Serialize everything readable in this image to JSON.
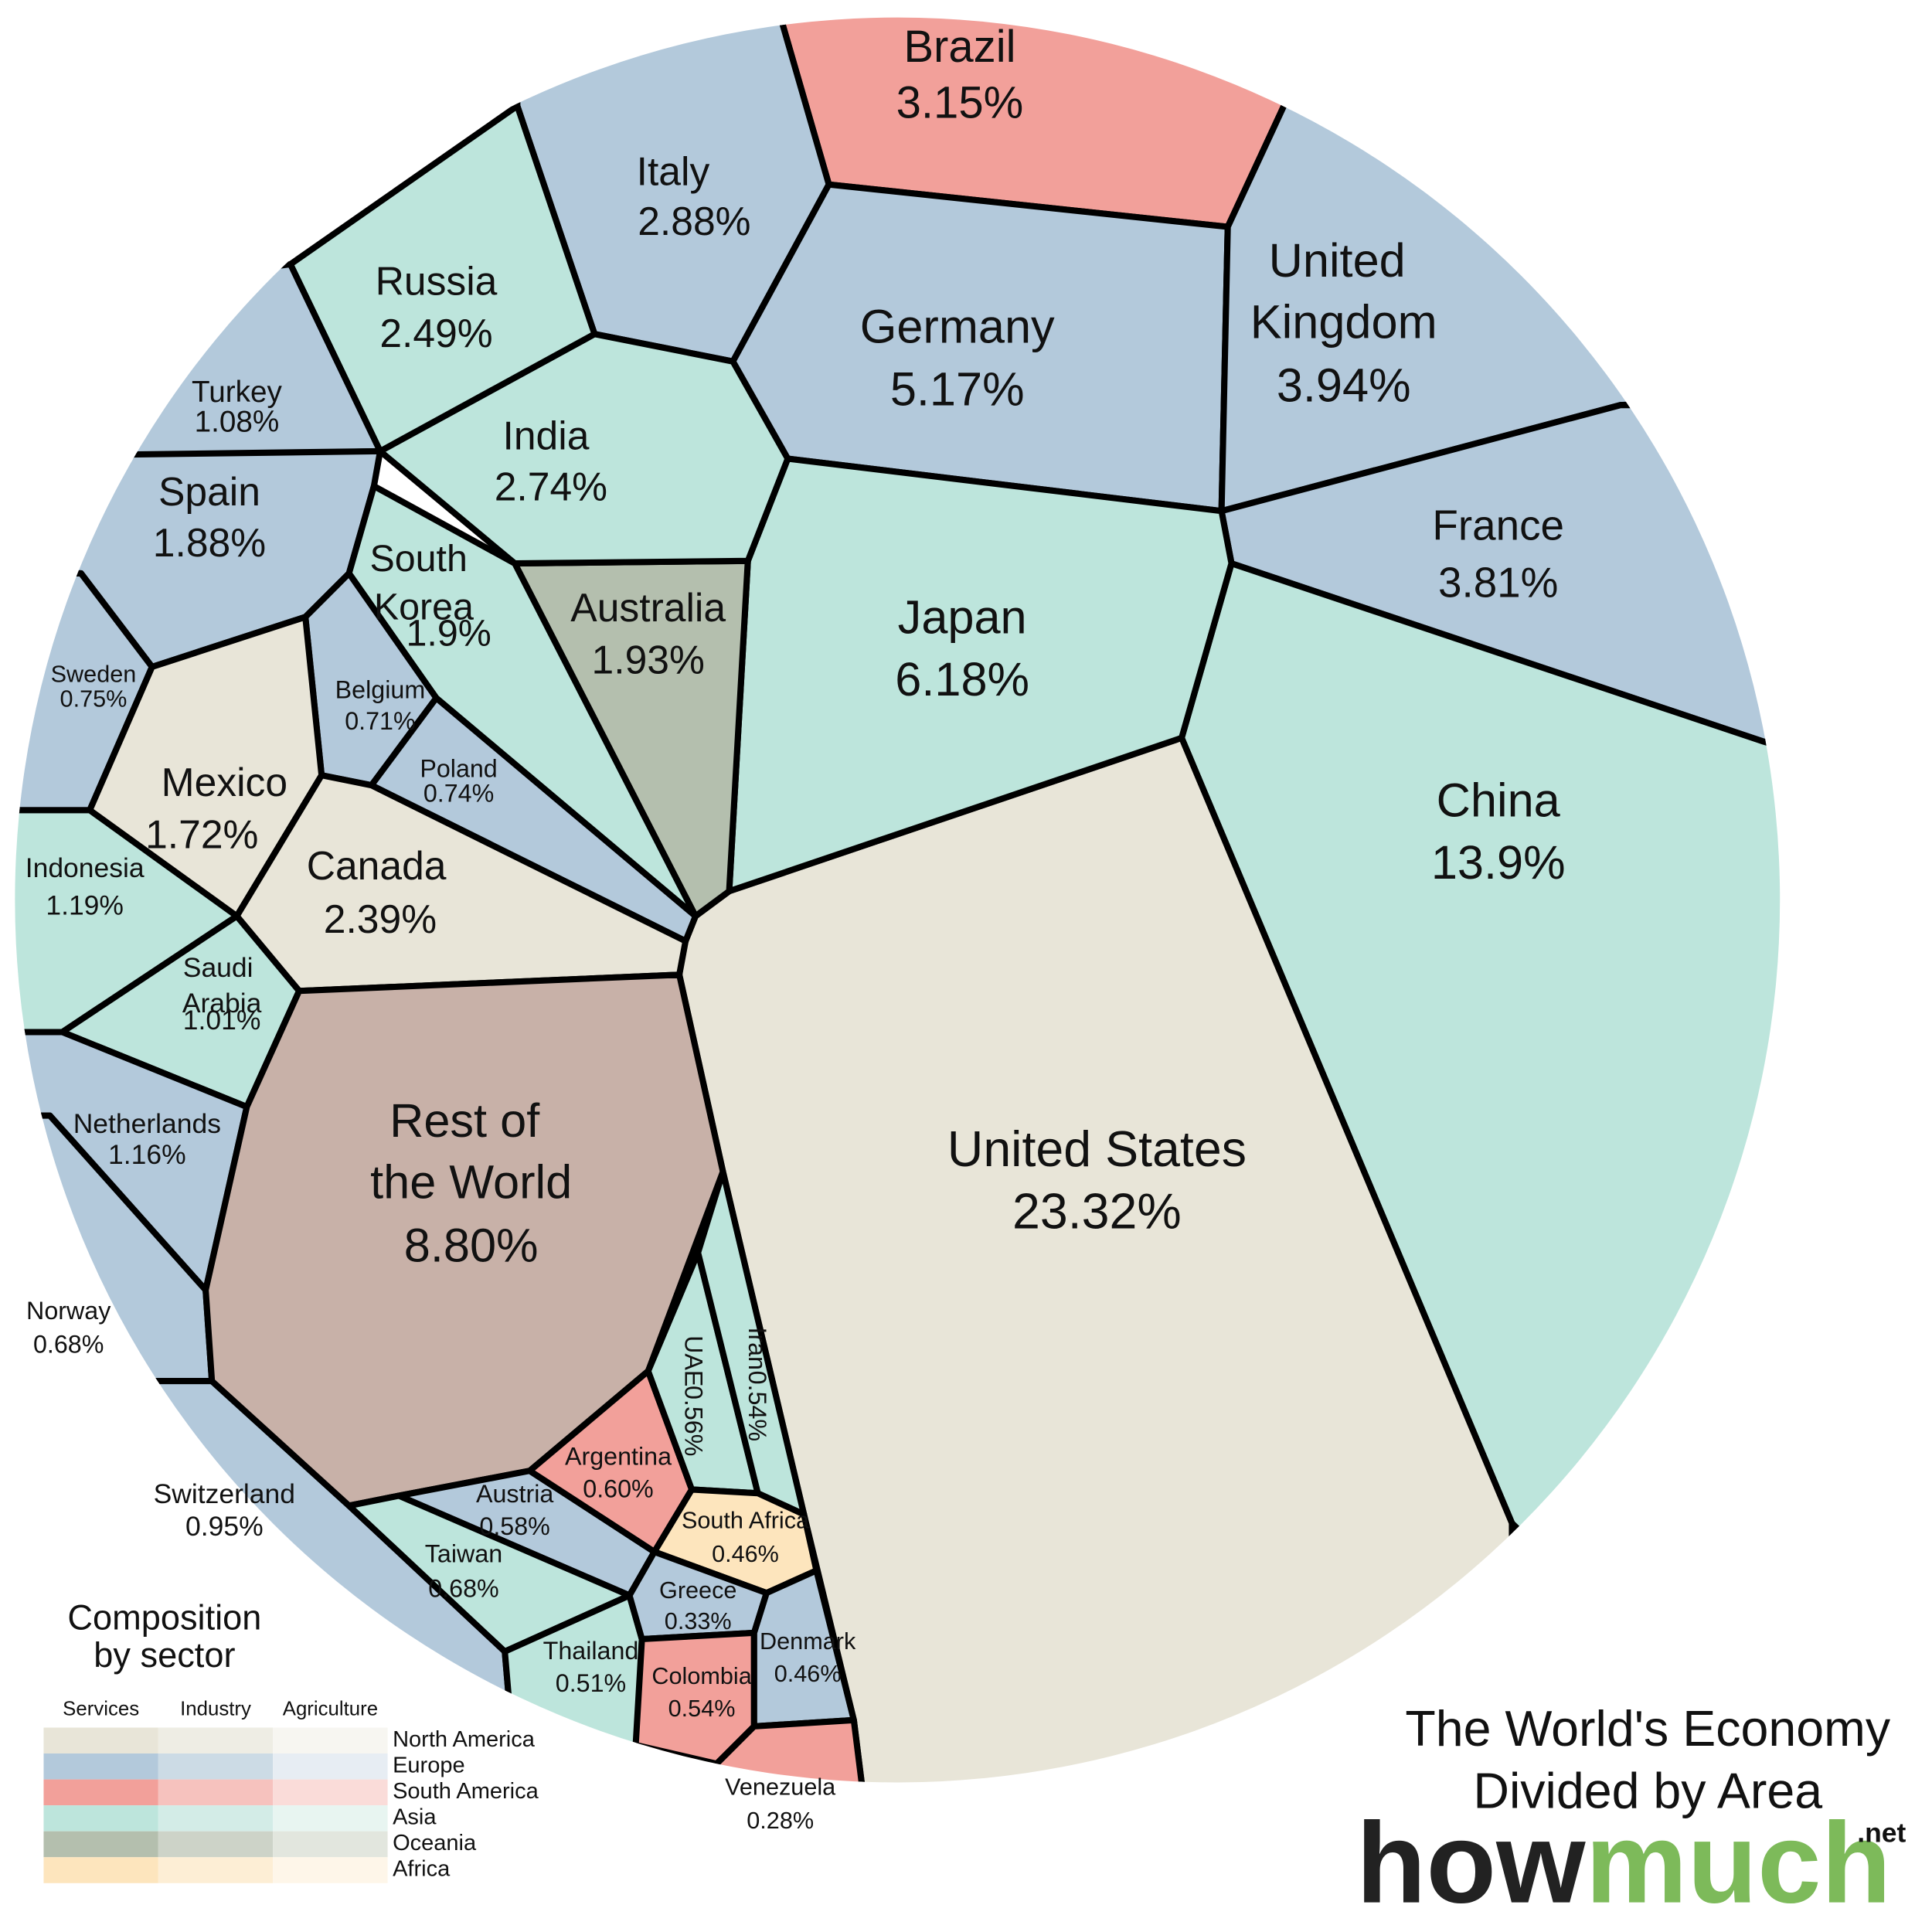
{
  "chart_data": {
    "type": "voronoi-treemap",
    "title": [
      "The World's Economy",
      "Divided by Area"
    ],
    "brand": {
      "main": "how",
      "accent": "much",
      "suffix": ".net"
    },
    "cells": [
      {
        "name": "Brazil",
        "value": 3.15,
        "value_label": "3.15%",
        "region": "South America"
      },
      {
        "name": "Italy",
        "value": 2.88,
        "value_label": "2.88%",
        "region": "Europe"
      },
      {
        "name": "Germany",
        "value": 5.17,
        "value_label": "5.17%",
        "region": "Europe"
      },
      {
        "name": "United Kingdom",
        "value": 3.94,
        "value_label": "3.94%",
        "region": "Europe"
      },
      {
        "name": "France",
        "value": 3.81,
        "value_label": "3.81%",
        "region": "Europe"
      },
      {
        "name": "China",
        "value": 13.9,
        "value_label": "13.9%",
        "region": "Asia"
      },
      {
        "name": "United States",
        "value": 23.32,
        "value_label": "23.32%",
        "region": "North America"
      },
      {
        "name": "Japan",
        "value": 6.18,
        "value_label": "6.18%",
        "region": "Asia"
      },
      {
        "name": "Australia",
        "value": 1.93,
        "value_label": "1.93%",
        "region": "Oceania"
      },
      {
        "name": "India",
        "value": 2.74,
        "value_label": "2.74%",
        "region": "Asia"
      },
      {
        "name": "Russia",
        "value": 2.49,
        "value_label": "2.49%",
        "region": "Asia"
      },
      {
        "name": "Turkey",
        "value": 1.08,
        "value_label": "1.08%",
        "region": "Europe"
      },
      {
        "name": "Spain",
        "value": 1.88,
        "value_label": "1.88%",
        "region": "Europe"
      },
      {
        "name": "South Korea",
        "value": 1.9,
        "value_label": "1.9%",
        "region": "Asia"
      },
      {
        "name": "Sweden",
        "value": 0.75,
        "value_label": "0.75%",
        "region": "Europe"
      },
      {
        "name": "Belgium",
        "value": 0.71,
        "value_label": "0.71%",
        "region": "Europe"
      },
      {
        "name": "Poland",
        "value": 0.74,
        "value_label": "0.74%",
        "region": "Europe"
      },
      {
        "name": "Mexico",
        "value": 1.72,
        "value_label": "1.72%",
        "region": "North America"
      },
      {
        "name": "Canada",
        "value": 2.39,
        "value_label": "2.39%",
        "region": "North America"
      },
      {
        "name": "Indonesia",
        "value": 1.19,
        "value_label": "1.19%",
        "region": "Asia"
      },
      {
        "name": "Saudi Arabia",
        "value": 1.01,
        "value_label": "1.01%",
        "region": "Asia"
      },
      {
        "name": "Netherlands",
        "value": 1.16,
        "value_label": "1.16%",
        "region": "Europe"
      },
      {
        "name": "Norway",
        "value": 0.68,
        "value_label": "0.68%",
        "region": "Europe"
      },
      {
        "name": "Switzerland",
        "value": 0.95,
        "value_label": "0.95%",
        "region": "Europe"
      },
      {
        "name": "Rest of the World",
        "value": 8.8,
        "value_label": "8.80%",
        "color": "#c8b1a8"
      },
      {
        "name": "Austria",
        "value": 0.58,
        "value_label": "0.58%",
        "region": "Europe"
      },
      {
        "name": "Taiwan",
        "value": 0.68,
        "value_label": "0.68%",
        "region": "Asia"
      },
      {
        "name": "Thailand",
        "value": 0.51,
        "value_label": "0.51%",
        "region": "Asia"
      },
      {
        "name": "Argentina",
        "value": 0.6,
        "value_label": "0.60%",
        "region": "South America"
      },
      {
        "name": "UAE",
        "value": 0.56,
        "value_label": "0.56%",
        "region": "Asia"
      },
      {
        "name": "Iran",
        "value": 0.54,
        "value_label": "0.54%",
        "region": "Asia"
      },
      {
        "name": "South Africa",
        "value": 0.46,
        "value_label": "0.46%",
        "region": "Africa"
      },
      {
        "name": "Greece",
        "value": 0.33,
        "value_label": "0.33%",
        "region": "Europe"
      },
      {
        "name": "Colombia",
        "value": 0.54,
        "value_label": "0.54%",
        "region": "South America"
      },
      {
        "name": "Denmark",
        "value": 0.46,
        "value_label": "0.46%",
        "region": "Europe"
      },
      {
        "name": "Venezuela",
        "value": 0.28,
        "value_label": "0.28%",
        "region": "South America"
      }
    ],
    "legend": {
      "title": [
        "Composition",
        "by sector"
      ],
      "sectors": [
        "Services",
        "Industry",
        "Agriculture"
      ],
      "regions": [
        {
          "name": "North America",
          "colors": [
            "#e8e5d8",
            "#eeede4",
            "#f7f6f1"
          ]
        },
        {
          "name": "Europe",
          "colors": [
            "#b3c9db",
            "#ccdbe5",
            "#e7edf3"
          ]
        },
        {
          "name": "South America",
          "colors": [
            "#f2a09a",
            "#f6c2be",
            "#fadcd9"
          ]
        },
        {
          "name": "Asia",
          "colors": [
            "#bde5dc",
            "#d3ece7",
            "#e8f5f1"
          ]
        },
        {
          "name": "Oceania",
          "colors": [
            "#b4bfae",
            "#cdd3c8",
            "#e2e6de"
          ]
        },
        {
          "name": "Africa",
          "colors": [
            "#fde5bd",
            "#fdeed5",
            "#fef6e9"
          ]
        }
      ]
    }
  }
}
